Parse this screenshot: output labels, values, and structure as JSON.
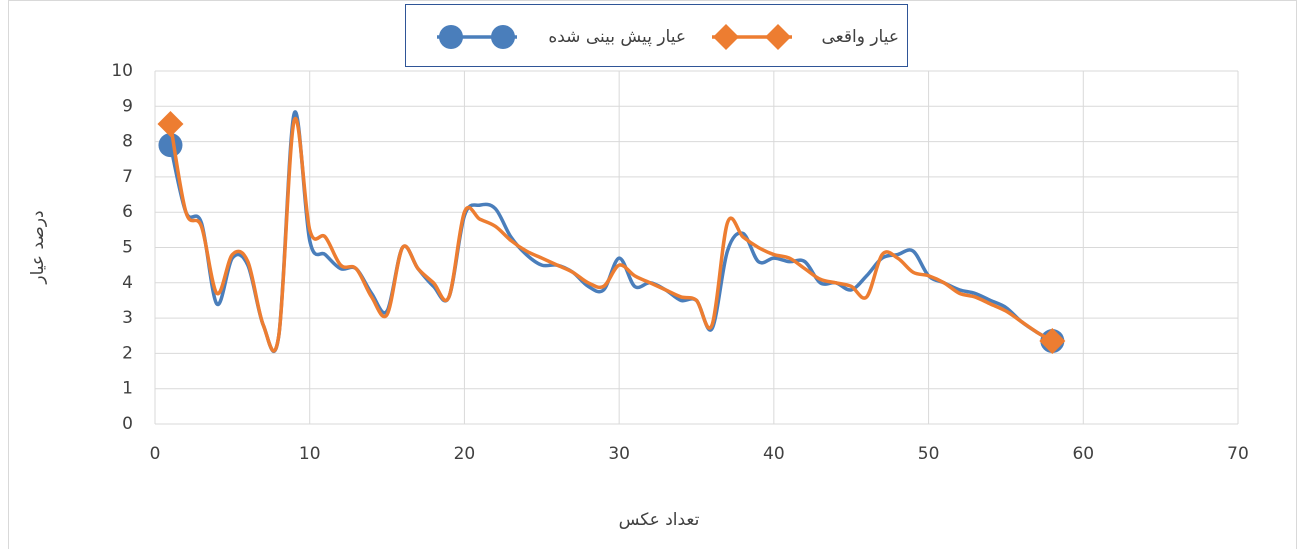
{
  "chart_data": {
    "type": "line",
    "x_label": "تعداد عکس",
    "y_label": "درصد عیار",
    "x": [
      1,
      2,
      3,
      4,
      5,
      6,
      7,
      8,
      9,
      10,
      11,
      12,
      13,
      14,
      15,
      16,
      17,
      18,
      19,
      20,
      21,
      22,
      23,
      24,
      25,
      26,
      27,
      28,
      29,
      30,
      31,
      32,
      33,
      34,
      35,
      36,
      37,
      38,
      39,
      40,
      41,
      42,
      43,
      44,
      45,
      46,
      47,
      48,
      49,
      50,
      51,
      52,
      53,
      54,
      55,
      56,
      57,
      58
    ],
    "series": [
      {
        "name": "عیار پیش بینی شده",
        "color": "#4a7ebb",
        "marker": "circle",
        "values": [
          7.9,
          6.0,
          5.7,
          3.4,
          4.7,
          4.5,
          2.8,
          2.5,
          8.8,
          5.2,
          4.8,
          4.4,
          4.4,
          3.7,
          3.2,
          5.0,
          4.4,
          3.9,
          3.6,
          5.9,
          6.2,
          6.1,
          5.3,
          4.8,
          4.5,
          4.5,
          4.3,
          3.9,
          3.8,
          4.7,
          3.9,
          4.0,
          3.8,
          3.5,
          3.5,
          2.7,
          4.9,
          5.4,
          4.6,
          4.7,
          4.6,
          4.6,
          4.0,
          4.0,
          3.8,
          4.2,
          4.7,
          4.8,
          4.9,
          4.2,
          4.0,
          3.8,
          3.7,
          3.5,
          3.3,
          2.9,
          2.6,
          2.35
        ]
      },
      {
        "name": "عیار واقعی",
        "color": "#ed7d31",
        "marker": "diamond",
        "values": [
          8.5,
          6.0,
          5.6,
          3.7,
          4.8,
          4.6,
          2.8,
          2.5,
          8.6,
          5.5,
          5.3,
          4.5,
          4.4,
          3.6,
          3.1,
          5.0,
          4.4,
          4.0,
          3.6,
          6.0,
          5.8,
          5.6,
          5.2,
          4.9,
          4.7,
          4.5,
          4.3,
          4.0,
          3.9,
          4.5,
          4.2,
          4.0,
          3.8,
          3.6,
          3.5,
          2.8,
          5.7,
          5.3,
          5.0,
          4.8,
          4.7,
          4.4,
          4.1,
          4.0,
          3.9,
          3.6,
          4.8,
          4.7,
          4.3,
          4.2,
          4.0,
          3.7,
          3.6,
          3.4,
          3.2,
          2.9,
          2.6,
          2.35
        ]
      }
    ],
    "xlim": [
      0,
      70
    ],
    "xticks": [
      0,
      10,
      20,
      30,
      40,
      50,
      60,
      70
    ],
    "ylim": [
      0,
      10
    ],
    "yticks": [
      0,
      1,
      2,
      3,
      4,
      5,
      6,
      7,
      8,
      9,
      10
    ],
    "grid": true,
    "smooth": true,
    "legend": "top"
  }
}
